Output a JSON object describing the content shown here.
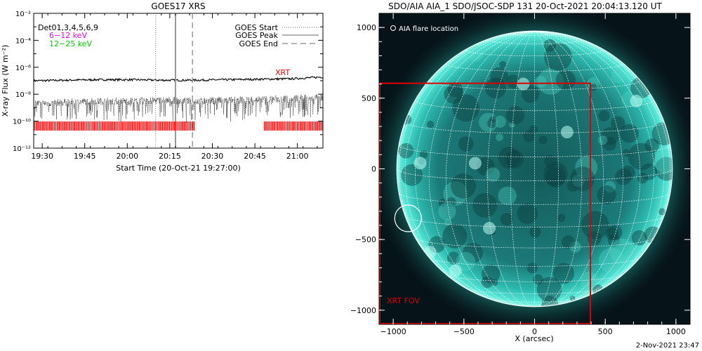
{
  "chart_data": [
    {
      "type": "line",
      "title": "GOES17 XRS",
      "xlabel": "Start Time (20-Oct-21 19:27:00)",
      "ylabel": "X-ray Flux (W m⁻²)",
      "x_range_minutes_from_1927": [
        0,
        102
      ],
      "xtick_labels": [
        "19:30",
        "19:45",
        "20:00",
        "20:15",
        "20:30",
        "20:45",
        "21:00"
      ],
      "xtick_minutes_from_1927": [
        3,
        18,
        33,
        48,
        63,
        78,
        93
      ],
      "ylim": [
        1e-12,
        0.01
      ],
      "yscale": "log",
      "ytick_labels": [
        "10⁻¹²",
        "10⁻¹⁰",
        "10⁻⁸",
        "10⁻⁶",
        "10⁻⁴",
        "10⁻²"
      ],
      "ytick_values": [
        1e-12,
        1e-10,
        1e-08,
        1e-06,
        0.0001,
        0.01
      ],
      "header_labels": [
        "Det01,3,4,5,6,9"
      ],
      "legend_left": [
        {
          "name": "6−12 keV",
          "color": "#ee00ee"
        },
        {
          "name": "12−25 keV",
          "color": "#00cc00"
        }
      ],
      "legend_right": [
        {
          "name": "GOES Start",
          "style": "dotted"
        },
        {
          "name": "GOES Peak",
          "style": "solid"
        },
        {
          "name": "GOES End",
          "style": "dashed"
        }
      ],
      "vlines_minutes_from_1927": {
        "goes_start": 43,
        "goes_peak": 50,
        "goes_end": 56
      },
      "series": [
        {
          "values": [
            1e-07,
            1.1e-07,
            1.2e-07,
            1.2e-07,
            1.1e-07,
            1.1e-07,
            1.2e-07,
            1.3e-07,
            1.4e-07,
            1.9e-07
          ]
        },
        {
          "values": [
            2e-09,
            2.5e-09,
            3e-09,
            3e-09,
            3.5e-09,
            3e-09,
            3.5e-09,
            4e-09,
            4.5e-09,
            6e-09
          ]
        }
      ],
      "xrt_label": "XRT",
      "xrt_color": "#ff0000",
      "xrt_coverage_minutes_from_1927": [
        [
          0,
          57
        ],
        [
          81,
          102
        ]
      ]
    },
    {
      "type": "image",
      "title": "SDO/AIA AIA_1 SDO/JSOC-SDP 131 20-Oct-2021 20:04:13.120 UT",
      "xlabel": "X (arcsec)",
      "x_range": [
        -1100,
        1100
      ],
      "y_range": [
        -1100,
        1100
      ],
      "xtick_values": [
        -1000,
        -500,
        0,
        500,
        1000
      ],
      "xtick_labels": [
        "−1000",
        "−500",
        "0",
        "500",
        "1000"
      ],
      "ytick_values": [
        -1000,
        -500,
        0,
        500,
        1000
      ],
      "ytick_labels": [
        "−1000",
        "−500",
        "0",
        "500",
        "1000"
      ],
      "disk_radius_arcsec": 975,
      "flare_location_label": "AIA flare location",
      "flare_location_arcsec": [
        -895,
        -350
      ],
      "xrt_fov_label": "XRT FOV",
      "xrt_fov_arcsec": {
        "x": [
          -1100,
          395
        ],
        "y": [
          -1100,
          605
        ]
      },
      "colors": {
        "disk": "#2fd6c4",
        "fov": "#e00000",
        "grid": "#ffffff"
      }
    }
  ],
  "footer": {
    "date": "2-Nov-2021 23:47"
  }
}
